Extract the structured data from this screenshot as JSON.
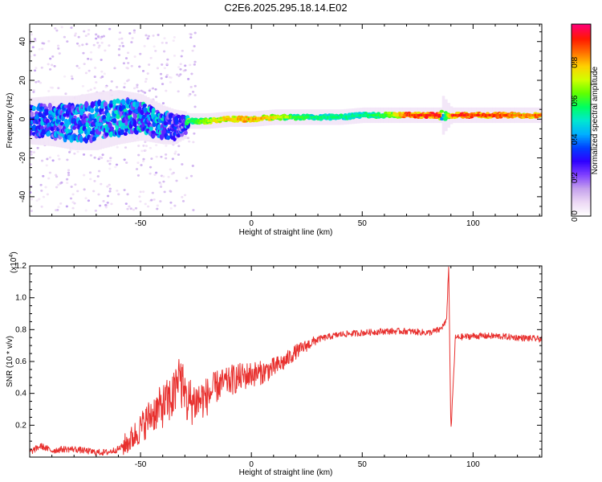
{
  "figure_title": "C2E6.2025.295.18.14.E02",
  "colors": {
    "snr_line": "#e8302e",
    "ridge_peak": "#e8302e",
    "axis": "#000000"
  },
  "colormap_stops": [
    "#ffffff",
    "#ecd8f4",
    "#c4a0ec",
    "#8040ff",
    "#2e00ff",
    "#0040ff",
    "#00b0ff",
    "#00e8d0",
    "#00ff60",
    "#60ff00",
    "#d0ff00",
    "#ffd000",
    "#ff7000",
    "#ff1800",
    "#ff0070"
  ],
  "chart_data": [
    {
      "type": "heatmap",
      "title": "C2E6.2025.295.18.14.E02",
      "xlabel": "Height of straight line (km)",
      "ylabel": "Frequency (Hz)",
      "xlim": [
        -100,
        131
      ],
      "ylim": [
        -50,
        49
      ],
      "xticks": [
        -50,
        0,
        50,
        100
      ],
      "xtick_labels": [
        "-50",
        "0",
        "50",
        "100"
      ],
      "yticks": [
        -40,
        -20,
        0,
        20,
        40
      ],
      "ytick_labels": [
        "-40",
        "-20",
        "0",
        "20",
        "40"
      ],
      "ridge": {
        "x": [
          -100,
          -90,
          -80,
          -70,
          -60,
          -50,
          -40,
          -35,
          -30,
          -29,
          -20,
          -10,
          0,
          10,
          20,
          30,
          40,
          50,
          60,
          70,
          80,
          85,
          86,
          90,
          100,
          110,
          120,
          131
        ],
        "center_hz": [
          -1,
          -1,
          -2,
          -1,
          1,
          1,
          -3,
          -4,
          -3,
          -1,
          -1,
          0,
          0,
          1,
          1,
          1,
          1,
          2,
          2,
          2,
          2,
          2,
          2,
          2,
          2,
          2,
          2,
          2
        ],
        "width_hz": [
          12,
          13,
          14,
          15,
          14,
          12,
          10,
          9,
          7,
          4,
          4,
          4,
          4,
          4,
          4,
          4,
          4,
          4,
          4,
          4,
          4,
          4,
          10,
          4,
          4,
          4,
          4,
          4
        ],
        "amplitude": [
          0.32,
          0.34,
          0.36,
          0.36,
          0.38,
          0.4,
          0.38,
          0.3,
          0.25,
          0.55,
          0.7,
          0.78,
          0.82,
          0.75,
          0.6,
          0.55,
          0.55,
          0.55,
          0.6,
          0.9,
          0.92,
          0.95,
          0.4,
          0.92,
          0.9,
          0.9,
          0.85,
          0.85
        ]
      },
      "colorbar": {
        "label": "Normalized spectral amplitude",
        "range": [
          0,
          1
        ],
        "ticks": [
          0,
          0.2,
          0.4,
          0.6,
          0.8
        ],
        "tick_labels": [
          "0.0",
          "0.2",
          "0.4",
          "0.6",
          "0.8"
        ]
      }
    },
    {
      "type": "line",
      "xlabel": "Height of straight line (km)",
      "ylabel": "SNR (10 * v/v)",
      "exponent_label": "(x10",
      "exponent_value": "4",
      "exponent_close": ")",
      "xlim": [
        -100,
        131
      ],
      "ylim": [
        0,
        1.2
      ],
      "xticks": [
        -50,
        0,
        50,
        100
      ],
      "xtick_labels": [
        "-50",
        "0",
        "50",
        "100"
      ],
      "yticks": [
        0.2,
        0.4,
        0.6,
        0.8,
        1.0,
        1.2
      ],
      "ytick_labels": [
        "0.2",
        "0.4",
        "0.6",
        "0.8",
        "1.0",
        "1.2"
      ],
      "series": [
        {
          "name": "SNR",
          "x": [
            -100,
            -95,
            -90,
            -85,
            -80,
            -75,
            -70,
            -65,
            -60,
            -55,
            -50,
            -45,
            -40,
            -35,
            -32,
            -30,
            -25,
            -20,
            -15,
            -10,
            -5,
            0,
            5,
            10,
            15,
            20,
            25,
            30,
            40,
            50,
            60,
            70,
            80,
            85,
            88,
            89,
            90,
            92,
            100,
            110,
            120,
            131
          ],
          "values": [
            0.03,
            0.07,
            0.04,
            0.05,
            0.05,
            0.04,
            0.03,
            0.03,
            0.05,
            0.1,
            0.18,
            0.27,
            0.32,
            0.38,
            0.5,
            0.35,
            0.35,
            0.38,
            0.45,
            0.48,
            0.5,
            0.52,
            0.53,
            0.56,
            0.6,
            0.66,
            0.7,
            0.74,
            0.77,
            0.78,
            0.79,
            0.79,
            0.78,
            0.8,
            0.85,
            1.2,
            0.15,
            0.75,
            0.76,
            0.76,
            0.75,
            0.74
          ]
        }
      ]
    }
  ]
}
